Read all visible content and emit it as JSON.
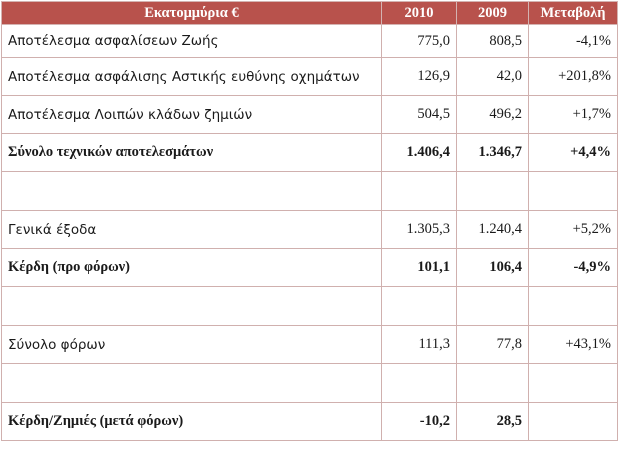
{
  "table": {
    "header": {
      "label": "Εκατομμύρια €",
      "col_2010": "2010",
      "col_2009": "2009",
      "col_change": "Μεταβολή"
    },
    "rows": [
      {
        "label": "Αποτέλεσμα ασφαλίσεων Ζωής",
        "y2010": "775,0",
        "y2009": "808,5",
        "change": "-4,1%",
        "style": "normal"
      },
      {
        "label": "Αποτέλεσμα ασφάλισης Αστικής ευθύνης οχημάτων",
        "y2010": "126,9",
        "y2009": "42,0",
        "change": "+201,8%",
        "style": "normal"
      },
      {
        "label": "Αποτέλεσμα Λοιπών κλάδων ζημιών",
        "y2010": "504,5",
        "y2009": "496,2",
        "change": "+1,7%",
        "style": "normal"
      },
      {
        "label": "Σύνολο τεχνικών αποτελεσμάτων",
        "y2010": "1.406,4",
        "y2009": "1.346,7",
        "change": "+4,4%",
        "style": "total"
      },
      {
        "label": "",
        "y2010": "",
        "y2009": "",
        "change": "",
        "style": "gap"
      },
      {
        "label": "Γενικά έξοδα",
        "y2010": "1.305,3",
        "y2009": "1.240,4",
        "change": "+5,2%",
        "style": "normal"
      },
      {
        "label": "Κέρδη (προ φόρων)",
        "y2010": "101,1",
        "y2009": "106,4",
        "change": "-4,9%",
        "style": "total"
      },
      {
        "label": "",
        "y2010": "",
        "y2009": "",
        "change": "",
        "style": "gap"
      },
      {
        "label": "Σύνολο φόρων",
        "y2010": "111,3",
        "y2009": "77,8",
        "change": "+43,1%",
        "style": "normal"
      },
      {
        "label": "",
        "y2010": "",
        "y2009": "",
        "change": "",
        "style": "gap"
      },
      {
        "label": "Κέρδη/Ζημιές (μετά φόρων)",
        "y2010": "-10,2",
        "y2009": "28,5",
        "change": "",
        "style": "total"
      }
    ]
  },
  "colors": {
    "header_bg": "#b8524c",
    "header_text": "#ffffff",
    "border": "#d0b0ae"
  }
}
